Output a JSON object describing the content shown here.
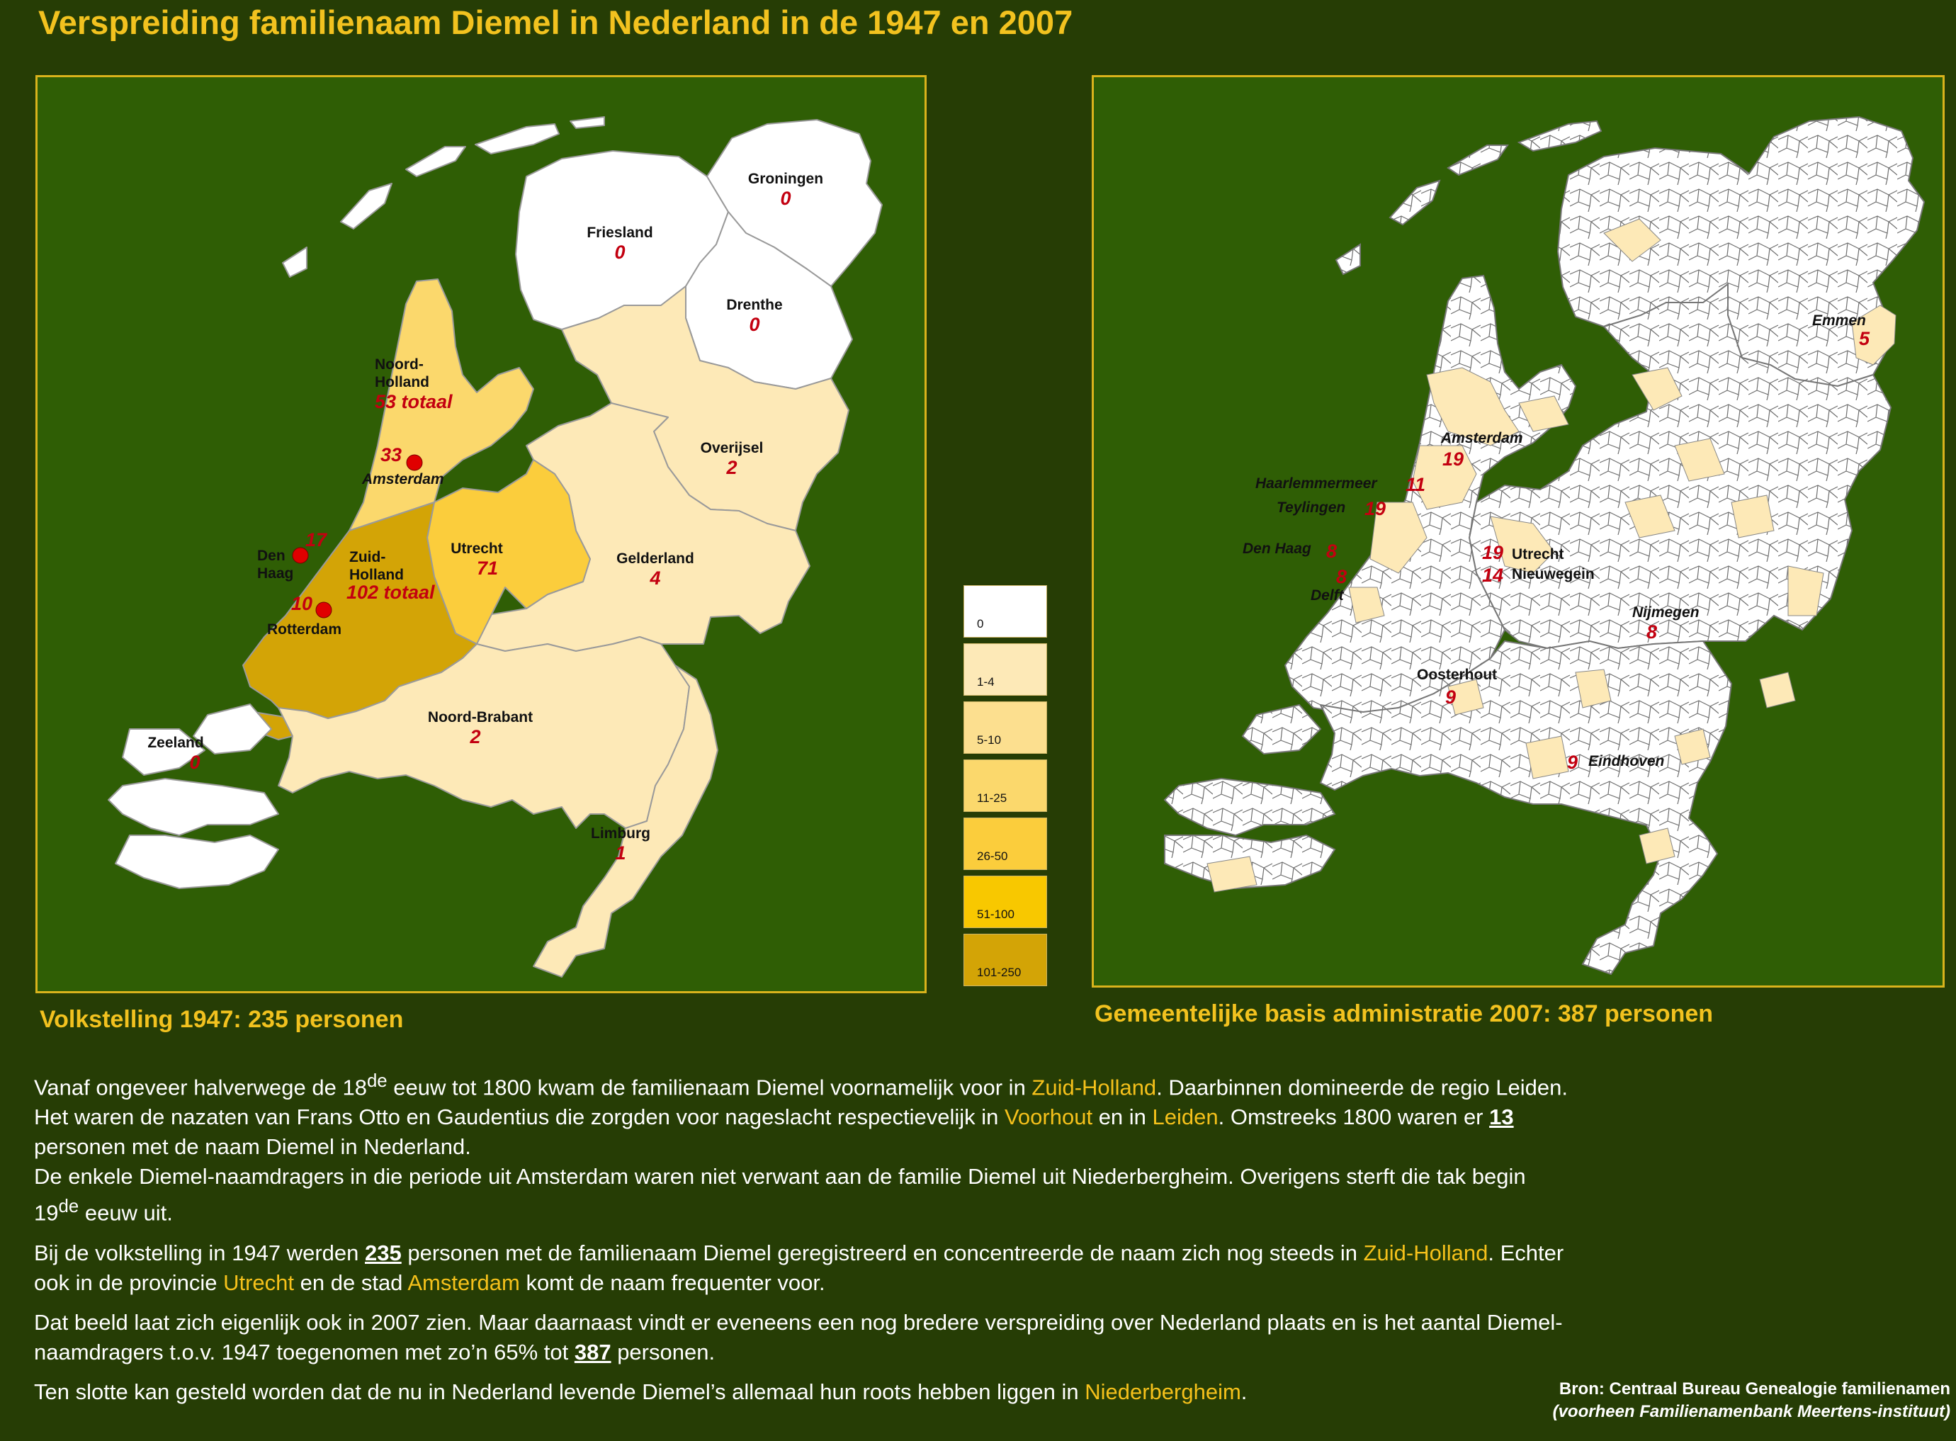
{
  "title": "Verspreiding familienaam Diemel in Nederland in de 1947 en 2007",
  "colors": {
    "background": "#263d05",
    "map_background": "#2f5e05",
    "accent": "#f2c21f",
    "count_label": "#c30010",
    "level_0": "#ffffff",
    "level_1_4": "#fde9b7",
    "level_5_10": "#fcdf8f",
    "level_11_25": "#fbd86c",
    "level_26_50": "#fbcd3c",
    "level_51_100": "#f8c800",
    "level_101_250": "#d3a406"
  },
  "map1947": {
    "caption": "Volkstelling 1947: 235 personen",
    "provinces": {
      "groningen": {
        "name": "Groningen",
        "count": "0"
      },
      "friesland": {
        "name": "Friesland",
        "count": "0"
      },
      "drenthe": {
        "name": "Drenthe",
        "count": "0"
      },
      "noord_holland": {
        "name1": "Noord-",
        "name2": "Holland",
        "count": "53 totaal"
      },
      "overijsel": {
        "name": "Overijsel",
        "count": "2"
      },
      "utrecht": {
        "name": "Utrecht",
        "count": "71"
      },
      "gelderland": {
        "name": "Gelderland",
        "count": "4"
      },
      "zuid_holland": {
        "name1": "Zuid-",
        "name2": "Holland",
        "count": "102 totaal"
      },
      "noord_brabant": {
        "name": "Noord-Brabant",
        "count": "2"
      },
      "zeeland": {
        "name": "Zeeland",
        "count": "0"
      },
      "limburg": {
        "name": "Limburg",
        "count": "1"
      }
    },
    "cities": {
      "amsterdam": {
        "name": "Amsterdam",
        "count": "33"
      },
      "den_haag": {
        "name1": "Den",
        "name2": "Haag",
        "count": "17"
      },
      "rotterdam": {
        "name": "Rotterdam",
        "count": "10"
      }
    }
  },
  "map2007": {
    "caption": "Gemeentelijke basis administratie 2007: 387 personen",
    "labels": [
      {
        "name": "Emmen",
        "count": "5"
      },
      {
        "name": "Amsterdam",
        "count": "19"
      },
      {
        "name": "Haarlemmermeer",
        "count": "11"
      },
      {
        "name": "Teylingen",
        "count": "19"
      },
      {
        "name": "Den Haag",
        "count": "8"
      },
      {
        "name": "Delft",
        "count": "8"
      },
      {
        "name": "Utrecht",
        "count": "19"
      },
      {
        "name": "Nieuwegein",
        "count": "14"
      },
      {
        "name": "Nijmegen",
        "count": "8"
      },
      {
        "name": "Oosterhout",
        "count": "9"
      },
      {
        "name": "Eindhoven",
        "count": "9"
      }
    ]
  },
  "legend": [
    {
      "label": "0",
      "color": "#ffffff"
    },
    {
      "label": "1-4",
      "color": "#fde9b7"
    },
    {
      "label": "5-10",
      "color": "#fcdf8f"
    },
    {
      "label": "11-25",
      "color": "#fbd86c"
    },
    {
      "label": "26-50",
      "color": "#fbcd3c"
    },
    {
      "label": "51-100",
      "color": "#f8c800"
    },
    {
      "label": "101-250",
      "color": "#d3a406"
    }
  ],
  "text": {
    "p1": {
      "a": "Vanaf ongeveer halverwege de 18",
      "sup1": "de",
      "b": " eeuw tot 1800 kwam de familienaam Diemel voornamelijk voor in ",
      "h1": "Zuid-Holland",
      "c": ". Daarbinnen domineerde de regio Leiden. Het waren de nazaten van Frans Otto en Gaudentius die zorgden voor nageslacht respectievelijk in ",
      "h2": "Voorhout",
      "d": " en in ",
      "h3": "Leiden",
      "e": ". Omstreeks 1800 waren er ",
      "n": "13",
      "f": " personen met de naam Diemel in Nederland.",
      "g": "De enkele Diemel-naamdragers in die periode uit Amsterdam waren niet verwant aan de familie Diemel uit Niederbergheim. Overigens sterft die tak begin 19",
      "sup2": "de",
      "h": " eeuw uit."
    },
    "p2": {
      "a": "Bij de volkstelling in 1947 werden ",
      "n": "235",
      "b": " personen met de familienaam Diemel geregistreerd en concentreerde de naam zich nog steeds in ",
      "h1": "Zuid-Holland",
      "c": ". Echter ook in de provincie ",
      "h2": "Utrecht",
      "d": " en de stad ",
      "h3": "Amsterdam",
      "e": " komt de naam frequenter voor."
    },
    "p3": {
      "a": "Dat beeld laat zich eigenlijk ook in 2007 zien. Maar daarnaast vindt er eveneens een nog bredere verspreiding over Nederland plaats en is het aantal Diemel-naamdragers t.o.v. 1947 toegenomen met zo’n 65% tot ",
      "n": "387",
      "b": " personen."
    },
    "p4": {
      "a": "Ten slotte kan gesteld worden dat de nu in Nederland levende Diemel’s allemaal hun roots hebben liggen in ",
      "h1": "Niederbergheim",
      "b": "."
    }
  },
  "source": {
    "line1": "Bron: Centraal Bureau Genealogie familienamen",
    "line2": "(voorheen Familienamenbank Meertens-instituut)"
  }
}
